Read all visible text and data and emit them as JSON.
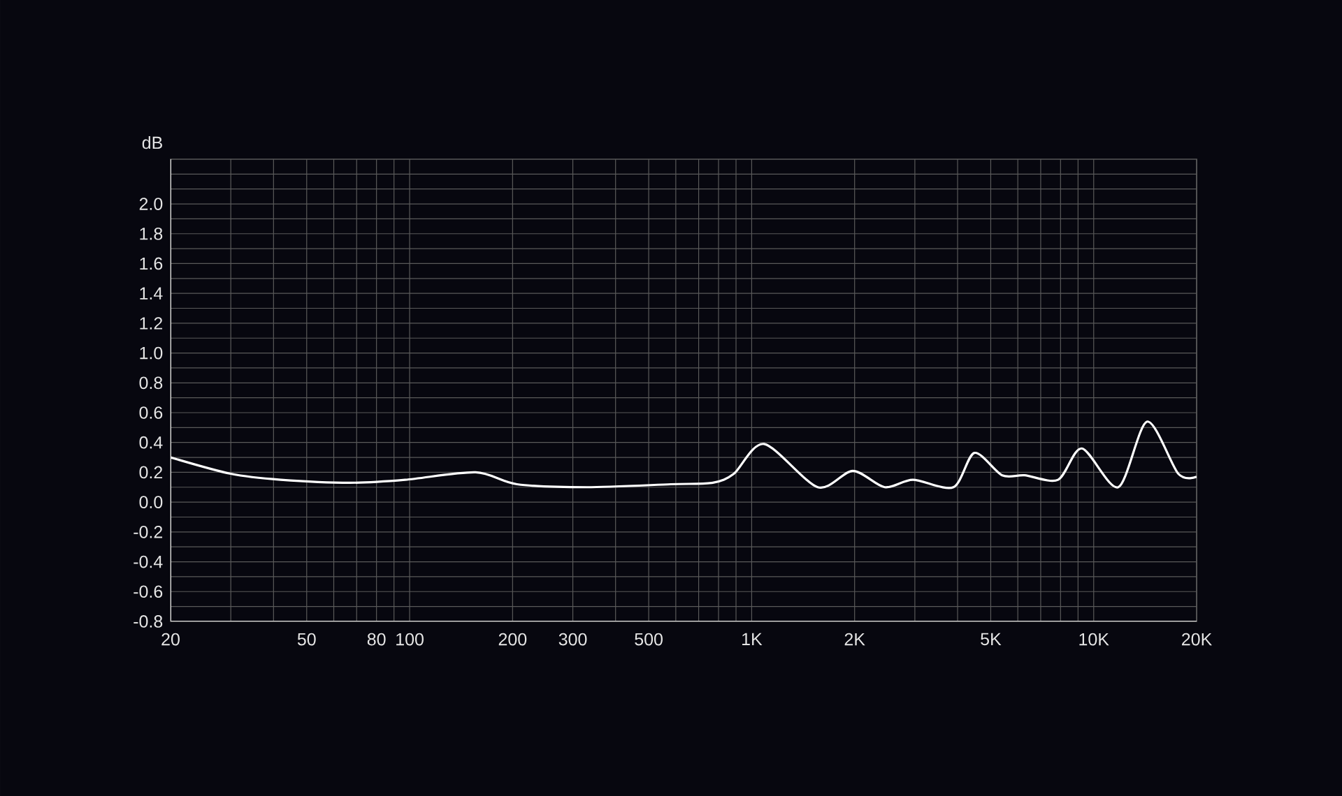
{
  "chart_data": {
    "type": "line",
    "ylabel": "dB",
    "log": "x",
    "grid": true,
    "marker": "none",
    "line_style": "solid",
    "xlim": [
      20,
      20000
    ],
    "ylim": [
      -0.8,
      2.3
    ],
    "xticks": [
      20,
      {
        "value": 30,
        "label": null
      },
      {
        "value": 40,
        "label": null
      },
      50,
      {
        "value": 60,
        "label": null
      },
      {
        "value": 70,
        "label": null
      },
      80,
      {
        "value": 90,
        "label": null
      },
      100,
      200,
      300,
      {
        "value": 400,
        "label": null
      },
      500,
      {
        "value": 600,
        "label": null
      },
      {
        "value": 700,
        "label": null
      },
      {
        "value": 800,
        "label": null
      },
      {
        "value": 900,
        "label": null
      },
      {
        "value": 1000,
        "label": "1K"
      },
      {
        "value": 2000,
        "label": "2K"
      },
      {
        "value": 3000,
        "label": null
      },
      {
        "value": 4000,
        "label": null
      },
      {
        "value": 5000,
        "label": "5K"
      },
      {
        "value": 6000,
        "label": null
      },
      {
        "value": 7000,
        "label": null
      },
      {
        "value": 8000,
        "label": null
      },
      {
        "value": 9000,
        "label": null
      },
      {
        "value": 10000,
        "label": "10K"
      },
      {
        "value": 20000,
        "label": "20K"
      }
    ],
    "yticks": [
      {
        "value": -0.8,
        "label": "-0.8"
      },
      {
        "value": -0.7,
        "label": null
      },
      {
        "value": -0.6,
        "label": "-0.6"
      },
      {
        "value": -0.5,
        "label": null
      },
      {
        "value": -0.4,
        "label": "-0.4"
      },
      {
        "value": -0.3,
        "label": null
      },
      {
        "value": -0.2,
        "label": "-0.2"
      },
      {
        "value": -0.1,
        "label": null
      },
      {
        "value": 0,
        "label": "0.0"
      },
      {
        "value": 0.1,
        "label": null
      },
      {
        "value": 0.2,
        "label": "0.2"
      },
      {
        "value": 0.3,
        "label": null
      },
      {
        "value": 0.4,
        "label": "0.4"
      },
      {
        "value": 0.5,
        "label": null
      },
      {
        "value": 0.6,
        "label": "0.6"
      },
      {
        "value": 0.7,
        "label": null
      },
      {
        "value": 0.8,
        "label": "0.8"
      },
      {
        "value": 0.9,
        "label": null
      },
      {
        "value": 1.0,
        "label": "1.0"
      },
      {
        "value": 1.1,
        "label": null
      },
      {
        "value": 1.2,
        "label": "1.2"
      },
      {
        "value": 1.3,
        "label": null
      },
      {
        "value": 1.4,
        "label": "1.4"
      },
      {
        "value": 1.5,
        "label": null
      },
      {
        "value": 1.6,
        "label": "1.6"
      },
      {
        "value": 1.7,
        "label": null
      },
      {
        "value": 1.8,
        "label": "1.8"
      },
      {
        "value": 1.9,
        "label": null
      },
      {
        "value": 2.0,
        "label": "2.0"
      },
      {
        "value": 2.1,
        "label": null
      },
      {
        "value": 2.2,
        "label": null
      }
    ],
    "x": [
      20,
      30,
      42,
      67,
      97,
      156,
      206,
      330,
      581,
      770,
      887,
      1088,
      1560,
      1975,
      2450,
      2960,
      3890,
      4480,
      5400,
      6280,
      7870,
      9240,
      11800,
      14330,
      17680,
      20000
    ],
    "series": [
      {
        "color": "#ffffff",
        "values": [
          0.3,
          0.19,
          0.15,
          0.13,
          0.15,
          0.2,
          0.12,
          0.1,
          0.12,
          0.13,
          0.19,
          0.39,
          0.1,
          0.21,
          0.1,
          0.15,
          0.1,
          0.33,
          0.18,
          0.18,
          0.15,
          0.36,
          0.1,
          0.54,
          0.19,
          0.17
        ]
      }
    ]
  }
}
